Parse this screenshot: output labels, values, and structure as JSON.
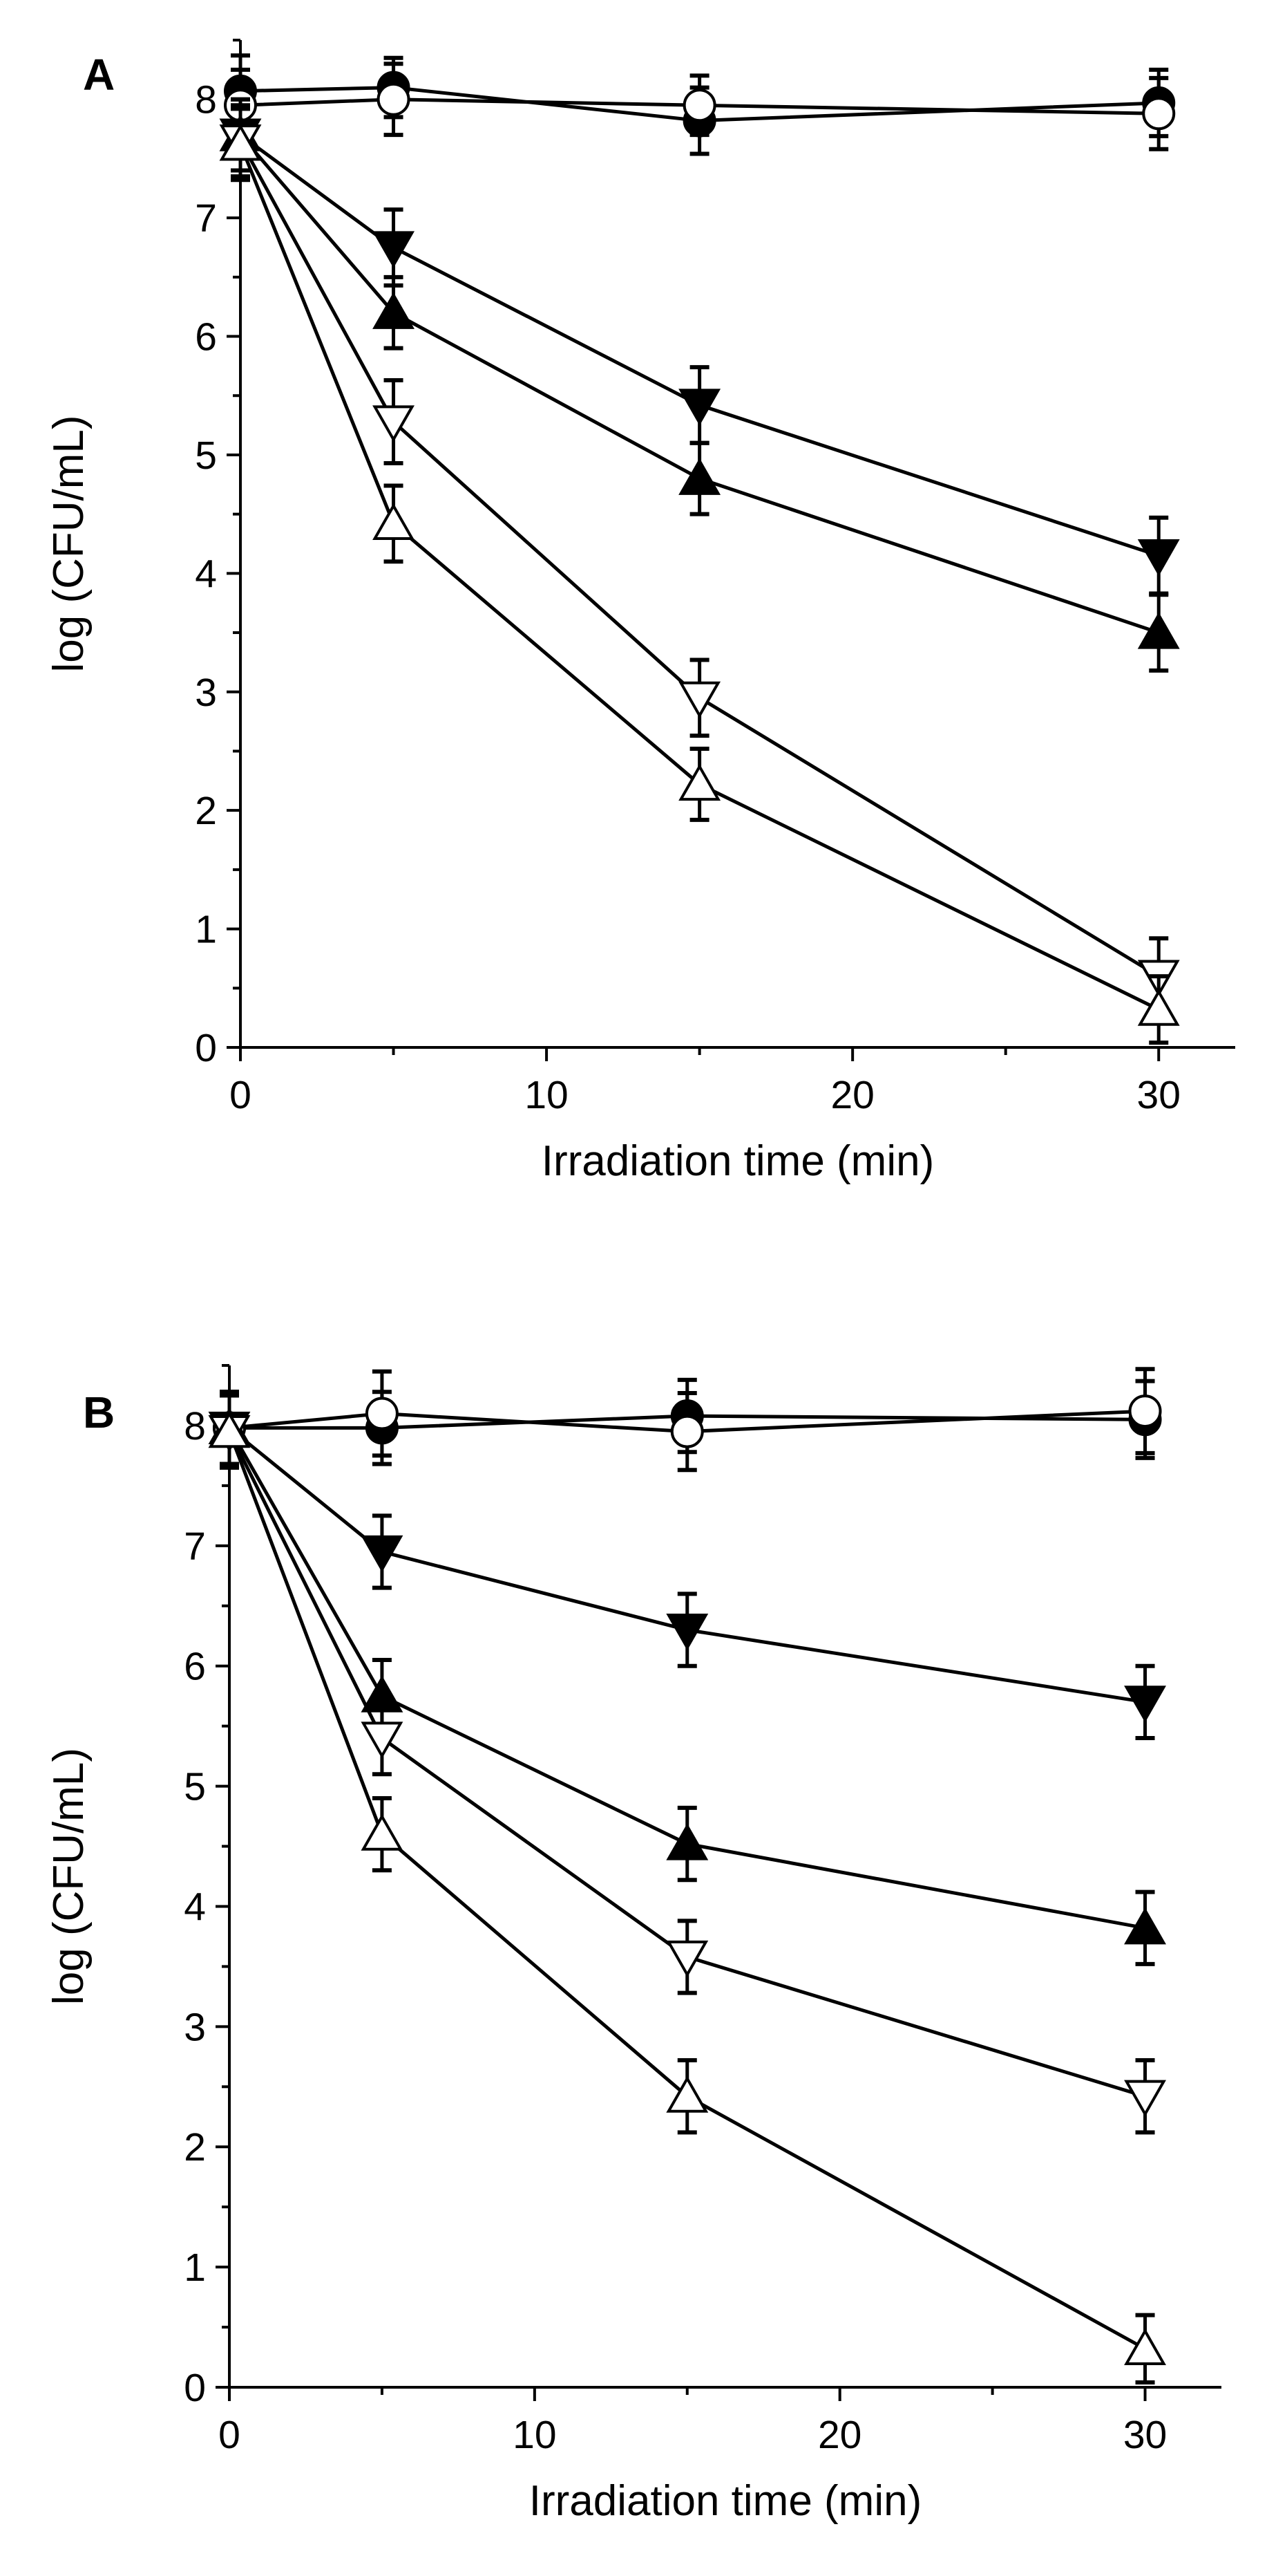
{
  "chart_data": [
    {
      "type": "line",
      "panel_label": "A",
      "xlabel": "Irradiation time (min)",
      "ylabel": "log (CFU/mL)",
      "xlim": [
        0,
        32.5
      ],
      "ylim": [
        0,
        8.5
      ],
      "x_ticks": [
        0,
        10,
        20,
        30
      ],
      "y_ticks": [
        0,
        1,
        2,
        3,
        4,
        5,
        6,
        7,
        8
      ],
      "x": [
        0,
        5,
        15,
        30
      ],
      "series": [
        {
          "marker": "filled-circle",
          "values": [
            8.07,
            8.1,
            7.82,
            7.97
          ],
          "errors": [
            0.3,
            0.25,
            0.28,
            0.28
          ]
        },
        {
          "marker": "open-circle",
          "values": [
            7.95,
            8.0,
            7.95,
            7.88
          ],
          "errors": [
            0.3,
            0.3,
            0.25,
            0.3
          ]
        },
        {
          "marker": "filled-down-triangle",
          "values": [
            7.7,
            6.75,
            5.42,
            4.15
          ],
          "errors": [
            0.3,
            0.32,
            0.32,
            0.32
          ]
        },
        {
          "marker": "filled-up-triangle",
          "values": [
            7.7,
            6.2,
            4.8,
            3.5
          ],
          "errors": [
            0.3,
            0.3,
            0.3,
            0.32
          ]
        },
        {
          "marker": "open-down-triangle",
          "values": [
            7.65,
            5.28,
            2.95,
            0.6
          ],
          "errors": [
            0.3,
            0.35,
            0.32,
            0.32
          ]
        },
        {
          "marker": "open-up-triangle",
          "values": [
            7.62,
            4.42,
            2.22,
            0.32
          ],
          "errors": [
            0.3,
            0.32,
            0.3,
            0.28
          ]
        }
      ]
    },
    {
      "type": "line",
      "panel_label": "B",
      "xlabel": "Irradiation time (min)",
      "ylabel": "log (CFU/mL)",
      "xlim": [
        0,
        32.5
      ],
      "ylim": [
        0,
        8.5
      ],
      "x_ticks": [
        0,
        10,
        20,
        30
      ],
      "y_ticks": [
        0,
        1,
        2,
        3,
        4,
        5,
        6,
        7,
        8
      ],
      "x": [
        0,
        5,
        15,
        30
      ],
      "series": [
        {
          "marker": "filled-circle",
          "values": [
            7.98,
            7.98,
            8.08,
            8.05
          ],
          "errors": [
            0.3,
            0.3,
            0.3,
            0.32
          ]
        },
        {
          "marker": "open-circle",
          "values": [
            7.98,
            8.1,
            7.95,
            8.12
          ],
          "errors": [
            0.3,
            0.35,
            0.32,
            0.35
          ]
        },
        {
          "marker": "filled-down-triangle",
          "values": [
            7.98,
            6.95,
            6.3,
            5.7
          ],
          "errors": [
            0.3,
            0.3,
            0.3,
            0.3
          ]
        },
        {
          "marker": "filled-up-triangle",
          "values": [
            7.98,
            5.75,
            4.52,
            3.82
          ],
          "errors": [
            0.3,
            0.3,
            0.3,
            0.3
          ]
        },
        {
          "marker": "open-down-triangle",
          "values": [
            7.95,
            5.4,
            3.58,
            2.42
          ],
          "errors": [
            0.3,
            0.3,
            0.3,
            0.3
          ]
        },
        {
          "marker": "open-up-triangle",
          "values": [
            7.95,
            4.6,
            2.42,
            0.32
          ],
          "errors": [
            0.3,
            0.3,
            0.3,
            0.28
          ]
        }
      ]
    }
  ]
}
